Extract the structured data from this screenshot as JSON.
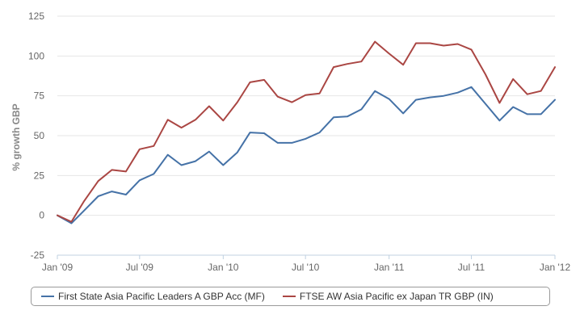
{
  "chart_data": {
    "type": "line",
    "ylabel": "% growth GBP",
    "ylim": [
      -25,
      125
    ],
    "yticks": [
      "125",
      "100",
      "75",
      "50",
      "25",
      "0",
      "-25"
    ],
    "yticks_values": [
      125,
      100,
      75,
      50,
      25,
      0,
      -25
    ],
    "xlim": [
      "2009-01-01",
      "2012-01-01"
    ],
    "xticks": [
      {
        "date": "2009-01-01",
        "label": "Jan '09"
      },
      {
        "date": "2009-07-01",
        "label": "Jul '09"
      },
      {
        "date": "2010-01-01",
        "label": "Jan '10"
      },
      {
        "date": "2010-07-01",
        "label": "Jul '10"
      },
      {
        "date": "2011-01-01",
        "label": "Jan '11"
      },
      {
        "date": "2011-07-01",
        "label": "Jul '11"
      },
      {
        "date": "2012-01-01",
        "label": "Jan '12"
      }
    ],
    "grid": "horizontal",
    "legend_position": "bottom",
    "x": [
      "2009-01-01",
      "2009-02-01",
      "2009-03-01",
      "2009-04-01",
      "2009-05-01",
      "2009-06-01",
      "2009-07-01",
      "2009-08-01",
      "2009-09-01",
      "2009-10-01",
      "2009-11-01",
      "2009-12-01",
      "2010-01-01",
      "2010-02-01",
      "2010-03-01",
      "2010-04-01",
      "2010-05-01",
      "2010-06-01",
      "2010-07-01",
      "2010-08-01",
      "2010-09-01",
      "2010-10-01",
      "2010-11-01",
      "2010-12-01",
      "2011-01-01",
      "2011-02-01",
      "2011-03-01",
      "2011-04-01",
      "2011-05-01",
      "2011-06-01",
      "2011-07-01",
      "2011-08-01",
      "2011-09-01",
      "2011-10-01",
      "2011-11-01",
      "2011-12-01",
      "2012-01-01"
    ],
    "series": [
      {
        "name": "First State Asia Pacific Leaders A GBP Acc (MF)",
        "color": "#4572a7",
        "values": [
          0,
          -5,
          3,
          12,
          15,
          13,
          22,
          26,
          38,
          31.5,
          34,
          40,
          31.5,
          39.5,
          52,
          51.5,
          45.5,
          45.5,
          48,
          52,
          61.5,
          62,
          66.5,
          78,
          73,
          64,
          72.5,
          74,
          75,
          77,
          80.5,
          70,
          59.5,
          68,
          63.5,
          63.5,
          72.5
        ]
      },
      {
        "name": "FTSE AW Asia Pacific ex Japan TR GBP (IN)",
        "color": "#aa4643",
        "values": [
          0,
          -4,
          9,
          21.5,
          28.5,
          27.5,
          41.5,
          43.5,
          60,
          55,
          60,
          68.5,
          59.5,
          71,
          83.5,
          85,
          74.5,
          71,
          75.5,
          76.5,
          93,
          95,
          96.5,
          109,
          101.5,
          94.5,
          108,
          108,
          106.5,
          107.5,
          104,
          88.5,
          70.5,
          85.5,
          76,
          78,
          93
        ]
      }
    ]
  }
}
